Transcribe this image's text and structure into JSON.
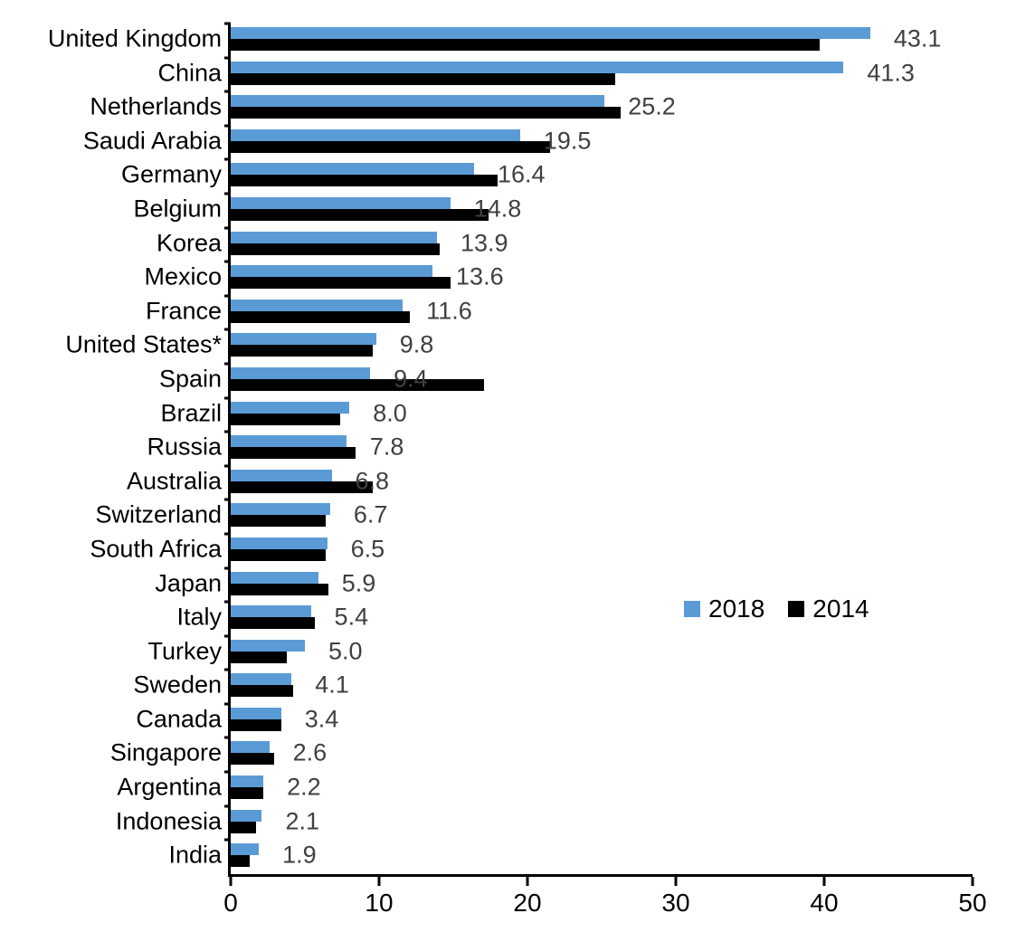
{
  "chart_data": {
    "type": "bar",
    "orientation": "horizontal",
    "title": "",
    "xlabel": "",
    "ylabel": "",
    "grid": false,
    "axis_color": "#000000",
    "xlim": [
      0,
      50
    ],
    "x_ticks": [
      "0",
      "10",
      "20",
      "30",
      "40",
      "50"
    ],
    "categories": [
      "United Kingdom",
      "China",
      "Netherlands",
      "Saudi Arabia",
      "Germany",
      "Belgium",
      "Korea",
      "Mexico",
      "France",
      "United States*",
      "Spain",
      "Brazil",
      "Russia",
      "Australia",
      "Switzerland",
      "South Africa",
      "Japan",
      "Italy",
      "Turkey",
      "Sweden",
      "Canada",
      "Singapore",
      "Argentina",
      "Indonesia",
      "India"
    ],
    "series": [
      {
        "name": "2018",
        "color": "#5B9BD5",
        "values": [
          43.1,
          41.3,
          25.2,
          19.5,
          16.4,
          14.8,
          13.9,
          13.6,
          11.6,
          9.8,
          9.4,
          8.0,
          7.8,
          6.8,
          6.7,
          6.5,
          5.9,
          5.4,
          5.0,
          4.1,
          3.4,
          2.6,
          2.2,
          2.1,
          1.9
        ]
      },
      {
        "name": "2014",
        "color": "#000000",
        "values": [
          39.7,
          25.9,
          26.3,
          21.5,
          18.0,
          17.4,
          14.1,
          14.8,
          12.1,
          9.6,
          17.1,
          7.4,
          8.4,
          9.6,
          6.4,
          6.4,
          6.6,
          5.7,
          3.8,
          4.2,
          3.4,
          2.9,
          2.2,
          1.7,
          1.3
        ]
      }
    ],
    "data_labels": {
      "for_series": "2018",
      "color": "#404040",
      "values": [
        "43.1",
        "41.3",
        "25.2",
        "19.5",
        "16.4",
        "14.8",
        "13.9",
        "13.6",
        "11.6",
        "9.8",
        "9.4",
        "8.0",
        "7.8",
        "6.8",
        "6.7",
        "6.5",
        "5.9",
        "5.4",
        "5.0",
        "4.1",
        "3.4",
        "2.6",
        "2.2",
        "2.1",
        "1.9"
      ]
    },
    "legend": {
      "position": "center-right",
      "entries": [
        {
          "label": "2018",
          "color": "#5B9BD5"
        },
        {
          "label": "2014",
          "color": "#000000"
        }
      ]
    }
  }
}
